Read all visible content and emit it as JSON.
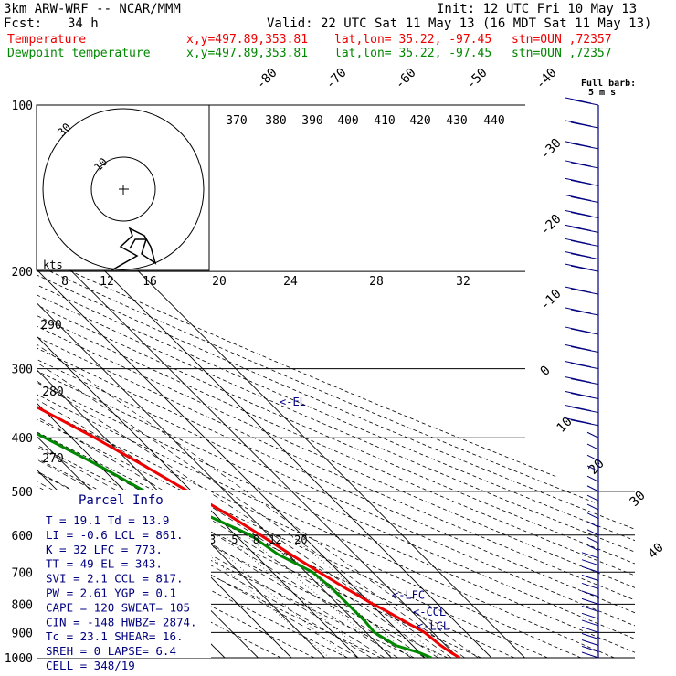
{
  "header": {
    "model": "3km ARW-WRF -- NCAR/MMM",
    "init": "Init: 12 UTC Fri 10 May 13",
    "fcst_label": "Fcst:",
    "fcst_value": "34 h",
    "valid": "Valid: 22 UTC Sat 11 May 13 (16 MDT Sat 11 May 13)",
    "temp_label": "Temperature",
    "dew_label": "Dewpoint temperature",
    "xy": "x,y=497.89,353.81",
    "latlon": "lat,lon= 35.22, -97.45",
    "stn": "stn=OUN ,72357",
    "barb_legend_1": "Full barb:",
    "barb_legend_2": "5 m s"
  },
  "colors": {
    "temperature": "#ee0000",
    "dewpoint": "#008800",
    "text": "#000080",
    "grid": "#000000",
    "wind": "#000080"
  },
  "parcel": {
    "title": "Parcel Info",
    "rows": [
      "T   =   19.1  Td =  13.9",
      "LI  =   -0.6  LCL =  861.",
      "K   =     32  LFC =  773.",
      "TT  =     49  EL  =  343.",
      "SVI =    2.1  CCL =  817.",
      "PW  =   2.61  YGP =   0.1",
      "CAPE =   120  SWEAT=  105",
      "CIN  =  -148  HWBZ= 2874.",
      "Tc  =   23.1  SHEAR=   16.",
      "SREH =     0  LAPSE=   6.4",
      "CELL = 348/19"
    ]
  },
  "chart_data": {
    "type": "line",
    "title": "",
    "ylabel": "",
    "y_scale": "log-pressure (hPa)",
    "pressure_levels": [
      100,
      200,
      300,
      400,
      500,
      600,
      700,
      800,
      900,
      1000
    ],
    "isotherm_labels": [
      "-80",
      "-70",
      "-60",
      "-50",
      "-40",
      "-30",
      "-20",
      "-10",
      "0",
      "10",
      "20",
      "30",
      "40"
    ],
    "theta_labels_top": [
      "370",
      "380",
      "390",
      "400",
      "410",
      "420",
      "430",
      "440"
    ],
    "mixing_ratio_labels": [
      "2",
      "3",
      "5",
      "8",
      "12",
      "20"
    ],
    "theta_labels_left": [
      "290",
      "280",
      "270"
    ],
    "hodograph_speed_labels": [
      "8",
      "12",
      "16",
      "20",
      "24",
      "28",
      "32"
    ],
    "hodograph_unit": "kts",
    "hodograph_ring_labels": [
      "30",
      "10"
    ],
    "series": [
      {
        "name": "Temperature",
        "color": "#ee0000",
        "points": [
          [
            1000,
            30.5
          ],
          [
            980,
            29.5
          ],
          [
            950,
            28.5
          ],
          [
            900,
            27.5
          ],
          [
            861,
            25
          ],
          [
            820,
            22.3
          ],
          [
            800,
            20.5
          ],
          [
            773,
            18.8
          ],
          [
            750,
            17.2
          ],
          [
            700,
            14
          ],
          [
            650,
            10.8
          ],
          [
            600,
            7.5
          ],
          [
            550,
            3.8
          ],
          [
            500,
            -1
          ],
          [
            450,
            -6.5
          ],
          [
            400,
            -13
          ],
          [
            350,
            -21.5
          ],
          [
            300,
            -30.5
          ],
          [
            270,
            -36
          ],
          [
            250,
            -40.5
          ],
          [
            230,
            -45.5
          ],
          [
            210,
            -50.5
          ],
          [
            200,
            -53.5
          ],
          [
            185,
            -56.5
          ],
          [
            170,
            -59.5
          ],
          [
            150,
            -61
          ],
          [
            130,
            -61.5
          ],
          [
            115,
            -61.5
          ],
          [
            100,
            -61.5
          ]
        ]
      },
      {
        "name": "Dewpoint temperature",
        "color": "#008800",
        "points": [
          [
            1000,
            22
          ],
          [
            980,
            20
          ],
          [
            950,
            15
          ],
          [
            900,
            12.5
          ],
          [
            861,
            13
          ],
          [
            800,
            13
          ],
          [
            750,
            13
          ],
          [
            700,
            12
          ],
          [
            650,
            7
          ],
          [
            600,
            4.5
          ],
          [
            550,
            -3
          ],
          [
            500,
            -14
          ],
          [
            450,
            -20
          ],
          [
            400,
            -28
          ],
          [
            350,
            -37
          ],
          [
            320,
            -43.5
          ],
          [
            300,
            -52
          ],
          [
            275,
            -70
          ],
          [
            250,
            -73.5
          ],
          [
            230,
            -77
          ],
          [
            200,
            -81
          ],
          [
            175,
            -85
          ],
          [
            150,
            -92
          ],
          [
            130,
            -96
          ],
          [
            115,
            -98
          ],
          [
            100,
            -100
          ]
        ]
      }
    ],
    "annotations": [
      {
        "label": "<-EL",
        "pressure": 343
      },
      {
        "label": "<-LFC",
        "pressure": 773
      },
      {
        "label": "<-CCL",
        "pressure": 817
      },
      {
        "label": "<-LCL",
        "pressure": 861
      }
    ],
    "wind_barbs_pressures": [
      100,
      110,
      120,
      130,
      140,
      150,
      160,
      170,
      180,
      190,
      200,
      220,
      240,
      260,
      280,
      300,
      320,
      340,
      360,
      380,
      400,
      420,
      440,
      460,
      480,
      500,
      520,
      540,
      560,
      580,
      600,
      620,
      640,
      660,
      680,
      700,
      725,
      750,
      775,
      800,
      825,
      850,
      875,
      900,
      925,
      950,
      975,
      1000
    ]
  }
}
